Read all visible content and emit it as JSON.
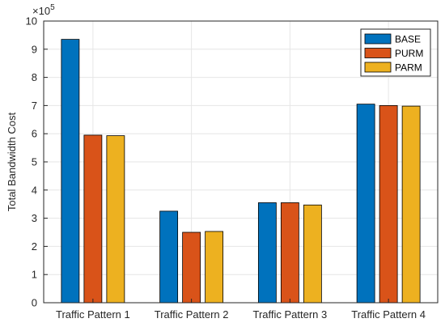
{
  "chart_data": {
    "type": "bar",
    "categories": [
      "Traffic Pattern 1",
      "Traffic Pattern 2",
      "Traffic Pattern 3",
      "Traffic Pattern 4"
    ],
    "series": [
      {
        "name": "BASE",
        "color": "#0072BD",
        "values": [
          935000,
          325000,
          355000,
          705000
        ]
      },
      {
        "name": "PURM",
        "color": "#D95319",
        "values": [
          595000,
          250000,
          355000,
          700000
        ]
      },
      {
        "name": "PARM",
        "color": "#EDB120",
        "values": [
          593000,
          253000,
          347000,
          698000
        ]
      }
    ],
    "ylabel": "Total Bandwidth Cost",
    "xlabel": "",
    "title": "",
    "ylim": [
      0,
      1000000
    ],
    "y_ticks": [
      0,
      1,
      2,
      3,
      4,
      5,
      6,
      7,
      8,
      9,
      10
    ],
    "y_exponent": "×10",
    "y_exponent_power": "5",
    "grid": true,
    "legend_position": "top-right"
  }
}
